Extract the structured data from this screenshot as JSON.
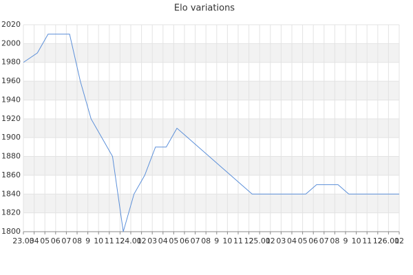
{
  "chart_data": {
    "type": "line",
    "title": "Elo variations",
    "x": [
      0,
      1.3,
      2.3,
      4.3,
      5.3,
      6.3,
      7.3,
      8.3,
      9.3,
      10.3,
      11.3,
      12.3,
      13.3,
      14.3,
      15.3,
      16.3,
      17.3,
      18.3,
      19.3,
      20.3,
      21.3,
      26.3,
      27.3,
      29.3,
      30.3,
      35
    ],
    "series": [
      {
        "color": "#5b8fd9",
        "values": [
          1980,
          1990,
          2010,
          2010,
          1960,
          1920,
          1900,
          1880,
          1800,
          1840,
          1860,
          1890,
          1890,
          1910,
          1900,
          1890,
          1880,
          1870,
          1860,
          1850,
          1840,
          1840,
          1850,
          1850,
          1840,
          1840
        ]
      }
    ],
    "xlim": [
      0,
      35
    ],
    "xticks": [
      {
        "value": 0,
        "label": "23.03"
      },
      {
        "value": 1,
        "label": "04"
      },
      {
        "value": 2,
        "label": "05"
      },
      {
        "value": 3,
        "label": "06"
      },
      {
        "value": 4,
        "label": "07"
      },
      {
        "value": 5,
        "label": "08"
      },
      {
        "value": 6,
        "label": "9"
      },
      {
        "value": 7,
        "label": "10"
      },
      {
        "value": 8,
        "label": "11"
      },
      {
        "value": 9,
        "label": "12"
      },
      {
        "value": 10,
        "label": "24.01"
      },
      {
        "value": 11,
        "label": "02"
      },
      {
        "value": 12,
        "label": "03"
      },
      {
        "value": 13,
        "label": "04"
      },
      {
        "value": 14,
        "label": "05"
      },
      {
        "value": 15,
        "label": "06"
      },
      {
        "value": 16,
        "label": "07"
      },
      {
        "value": 17,
        "label": "08"
      },
      {
        "value": 18,
        "label": "9"
      },
      {
        "value": 19,
        "label": "10"
      },
      {
        "value": 20,
        "label": "11"
      },
      {
        "value": 21,
        "label": "12"
      },
      {
        "value": 22,
        "label": "25.01"
      },
      {
        "value": 23,
        "label": "02"
      },
      {
        "value": 24,
        "label": "03"
      },
      {
        "value": 25,
        "label": "04"
      },
      {
        "value": 26,
        "label": "05"
      },
      {
        "value": 27,
        "label": "06"
      },
      {
        "value": 28,
        "label": "07"
      },
      {
        "value": 29,
        "label": "08"
      },
      {
        "value": 30,
        "label": "9"
      },
      {
        "value": 31,
        "label": "10"
      },
      {
        "value": 32,
        "label": "11"
      },
      {
        "value": 33,
        "label": "12"
      },
      {
        "value": 34,
        "label": "26.01"
      },
      {
        "value": 35,
        "label": "02"
      }
    ],
    "ylim": [
      1800,
      2020
    ],
    "yticks": [
      1800,
      1820,
      1840,
      1860,
      1880,
      1900,
      1920,
      1940,
      1960,
      1980,
      2000,
      2020
    ],
    "grid": true
  }
}
